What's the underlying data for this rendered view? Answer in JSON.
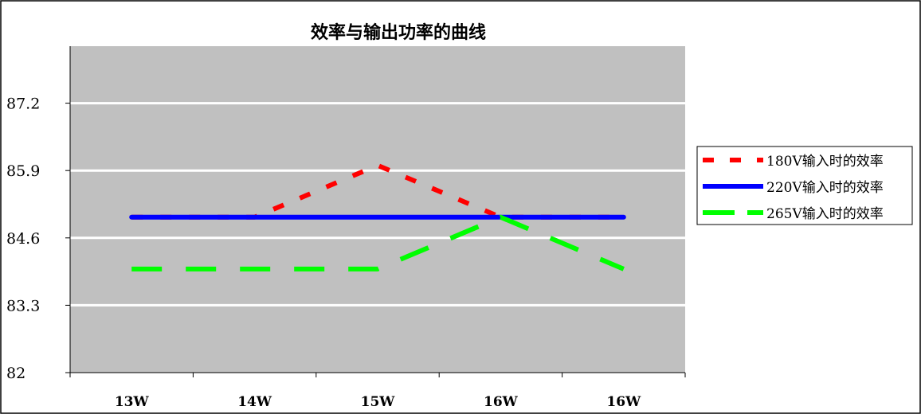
{
  "chart_data": {
    "type": "line",
    "title": "效率与输出功率的曲线",
    "xlabel": "",
    "ylabel": "",
    "categories": [
      "13W",
      "14W",
      "15W",
      "16W",
      "16W"
    ],
    "y_ticks": [
      "82",
      "83.3",
      "84.6",
      "85.9",
      "87.2"
    ],
    "ylim": [
      82,
      88.3
    ],
    "grid": true,
    "legend_position": "right",
    "series": [
      {
        "name": "180V输入时的效率",
        "color": "#ff0000",
        "dash": "dashed-short",
        "points": [
          [
            0,
            85.0
          ],
          [
            1,
            85.0
          ],
          [
            2,
            86.0
          ],
          [
            3,
            85.0
          ],
          [
            4,
            85.0
          ]
        ]
      },
      {
        "name": "220V输入时的效率",
        "color": "#0000ff",
        "dash": "solid",
        "points": [
          [
            0,
            85.0
          ],
          [
            1,
            85.0
          ],
          [
            2,
            85.0
          ],
          [
            3,
            85.0
          ],
          [
            4,
            85.0
          ]
        ]
      },
      {
        "name": "265V输入时的效率",
        "color": "#00ff00",
        "dash": "dashed-long",
        "points": [
          [
            0,
            84.0
          ],
          [
            1,
            84.0
          ],
          [
            2,
            84.0
          ],
          [
            3,
            85.0
          ],
          [
            4,
            84.0
          ]
        ]
      }
    ]
  }
}
